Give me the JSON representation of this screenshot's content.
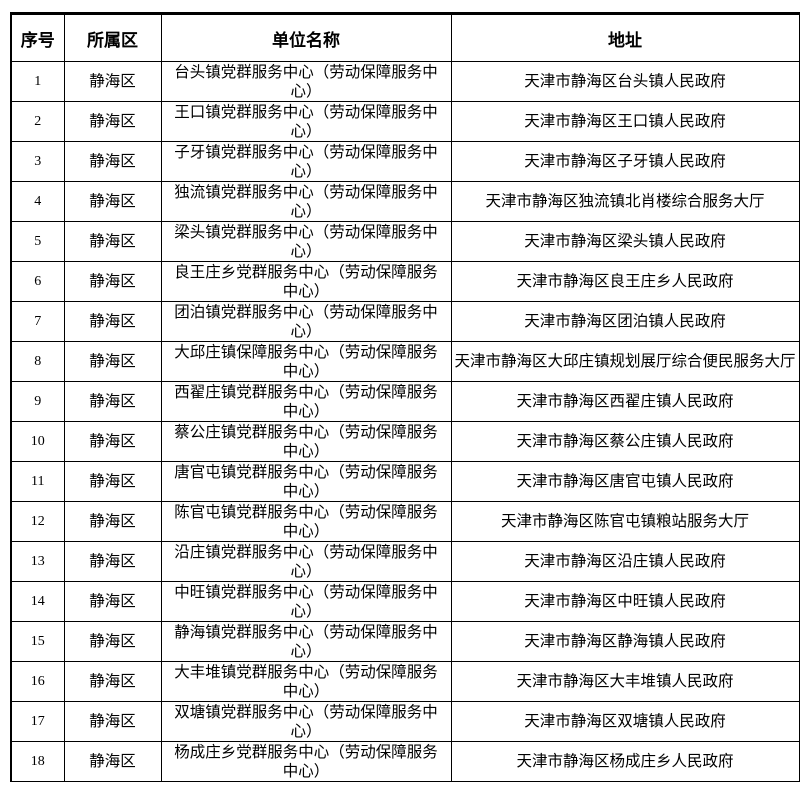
{
  "headers": [
    "序号",
    "所属区",
    "单位名称",
    "地址"
  ],
  "rows": [
    {
      "no": "1",
      "district": "静海区",
      "name": "台头镇党群服务中心（劳动保障服务中心）",
      "address": "天津市静海区台头镇人民政府"
    },
    {
      "no": "2",
      "district": "静海区",
      "name": "王口镇党群服务中心（劳动保障服务中心）",
      "address": "天津市静海区王口镇人民政府"
    },
    {
      "no": "3",
      "district": "静海区",
      "name": "子牙镇党群服务中心（劳动保障服务中心）",
      "address": "天津市静海区子牙镇人民政府"
    },
    {
      "no": "4",
      "district": "静海区",
      "name": "独流镇党群服务中心（劳动保障服务中心）",
      "address": "天津市静海区独流镇北肖楼综合服务大厅"
    },
    {
      "no": "5",
      "district": "静海区",
      "name": "梁头镇党群服务中心（劳动保障服务中心）",
      "address": "天津市静海区梁头镇人民政府"
    },
    {
      "no": "6",
      "district": "静海区",
      "name": "良王庄乡党群服务中心（劳动保障服务中心）",
      "address": "天津市静海区良王庄乡人民政府"
    },
    {
      "no": "7",
      "district": "静海区",
      "name": "团泊镇党群服务中心（劳动保障服务中心）",
      "address": "天津市静海区团泊镇人民政府"
    },
    {
      "no": "8",
      "district": "静海区",
      "name": "大邱庄镇保障服务中心（劳动保障服务中心）",
      "address": "天津市静海区大邱庄镇规划展厅综合便民服务大厅"
    },
    {
      "no": "9",
      "district": "静海区",
      "name": "西翟庄镇党群服务中心（劳动保障服务中心）",
      "address": "天津市静海区西翟庄镇人民政府"
    },
    {
      "no": "10",
      "district": "静海区",
      "name": "蔡公庄镇党群服务中心（劳动保障服务中心）",
      "address": "天津市静海区蔡公庄镇人民政府"
    },
    {
      "no": "11",
      "district": "静海区",
      "name": "唐官屯镇党群服务中心（劳动保障服务中心）",
      "address": "天津市静海区唐官屯镇人民政府"
    },
    {
      "no": "12",
      "district": "静海区",
      "name": "陈官屯镇党群服务中心（劳动保障服务中心）",
      "address": "天津市静海区陈官屯镇粮站服务大厅"
    },
    {
      "no": "13",
      "district": "静海区",
      "name": "沿庄镇党群服务中心（劳动保障服务中心）",
      "address": "天津市静海区沿庄镇人民政府"
    },
    {
      "no": "14",
      "district": "静海区",
      "name": "中旺镇党群服务中心（劳动保障服务中心）",
      "address": "天津市静海区中旺镇人民政府"
    },
    {
      "no": "15",
      "district": "静海区",
      "name": "静海镇党群服务中心（劳动保障服务中心）",
      "address": "天津市静海区静海镇人民政府"
    },
    {
      "no": "16",
      "district": "静海区",
      "name": "大丰堆镇党群服务中心（劳动保障服务中心）",
      "address": "天津市静海区大丰堆镇人民政府"
    },
    {
      "no": "17",
      "district": "静海区",
      "name": "双塘镇党群服务中心（劳动保障服务中心）",
      "address": "天津市静海区双塘镇人民政府"
    },
    {
      "no": "18",
      "district": "静海区",
      "name": "杨成庄乡党群服务中心（劳动保障服务中心）",
      "address": "天津市静海区杨成庄乡人民政府"
    }
  ]
}
